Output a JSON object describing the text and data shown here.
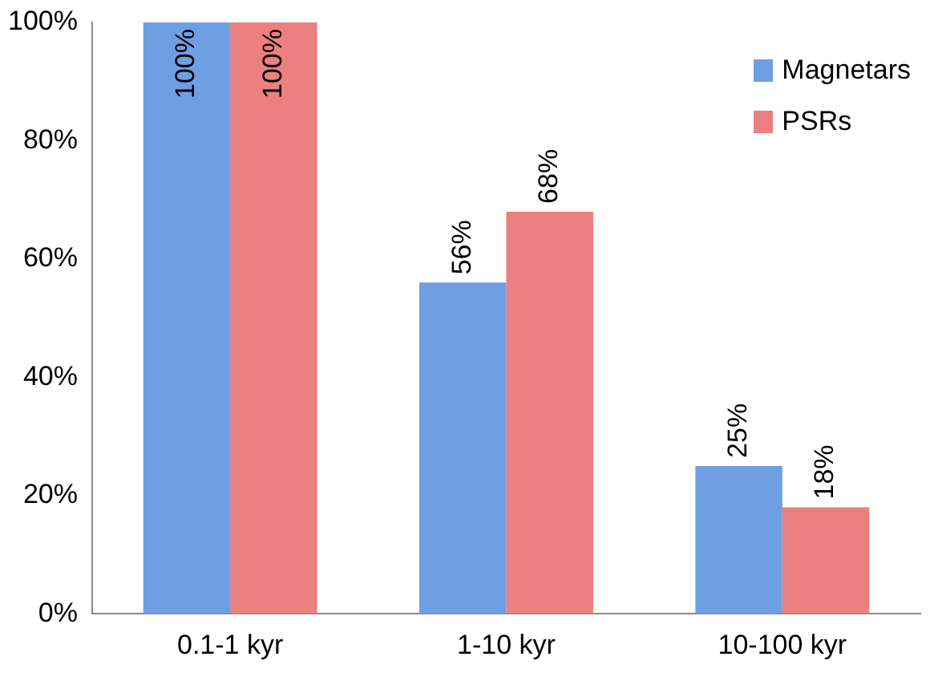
{
  "chart_data": {
    "type": "bar",
    "categories": [
      "0.1-1 kyr",
      "1-10 kyr",
      "10-100 kyr"
    ],
    "series": [
      {
        "name": "Magnetars",
        "color": "#6f9fe3",
        "values": [
          100,
          56,
          25
        ],
        "value_labels": [
          "100%",
          "56%",
          "25%"
        ]
      },
      {
        "name": "PSRs",
        "color": "#ec7f7f",
        "values": [
          100,
          68,
          18
        ],
        "value_labels": [
          "100%",
          "68%",
          "18%"
        ]
      }
    ],
    "ylim": [
      0,
      100
    ],
    "yticks": [
      {
        "value": 0,
        "label": "0%"
      },
      {
        "value": 20,
        "label": "20%"
      },
      {
        "value": 40,
        "label": "40%"
      },
      {
        "value": 60,
        "label": "60%"
      },
      {
        "value": 80,
        "label": "80%"
      },
      {
        "value": 100,
        "label": "100%"
      }
    ],
    "grid": false,
    "legend": "top right"
  }
}
